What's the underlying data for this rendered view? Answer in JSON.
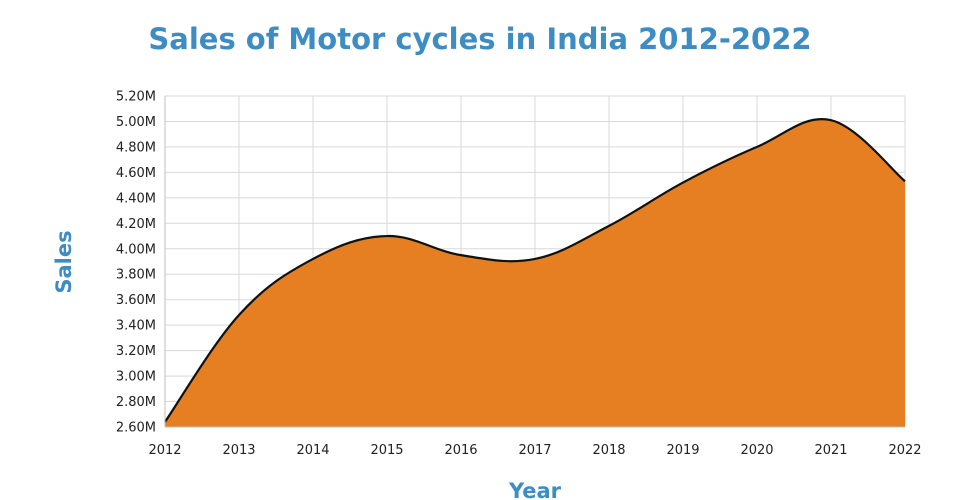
{
  "chart_data": {
    "type": "area",
    "title": "Sales of Motor cycles in India 2012-2022",
    "xlabel": "Year",
    "ylabel": "Sales",
    "x": [
      "2012",
      "2013",
      "2014",
      "2015",
      "2016",
      "2017",
      "2018",
      "2019",
      "2020",
      "2021",
      "2022"
    ],
    "y_ticks": [
      "2.60M",
      "2.80M",
      "3.00M",
      "3.20M",
      "3.40M",
      "3.60M",
      "3.80M",
      "4.00M",
      "4.20M",
      "4.40M",
      "4.60M",
      "4.80M",
      "5.00M",
      "5.20M"
    ],
    "ylim": [
      2600000,
      5200000
    ],
    "series": [
      {
        "values": [
          2640000,
          3480000,
          3920000,
          4100000,
          3950000,
          3920000,
          4180000,
          4520000,
          4800000,
          5010000,
          4530000
        ]
      }
    ],
    "fill_color": "#e67f22",
    "line_color": "#111111",
    "grid": true,
    "legend": "none"
  }
}
